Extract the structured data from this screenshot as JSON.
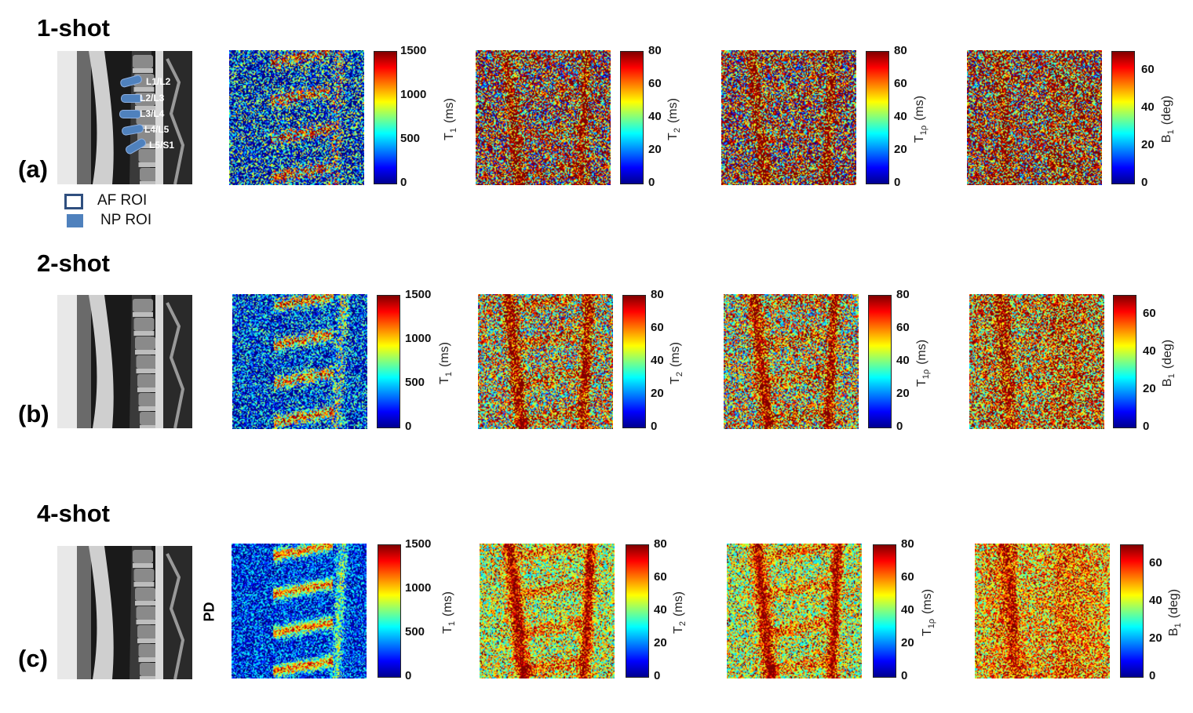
{
  "rows": [
    {
      "title": "1-shot",
      "letter": "(a)"
    },
    {
      "title": "2-shot",
      "letter": "(b)"
    },
    {
      "title": "4-shot",
      "letter": "(c)"
    }
  ],
  "maps": [
    {
      "id": "t1",
      "label": "T",
      "sub": "1",
      "unit": "(ms)",
      "ticks": [
        "1500",
        "1000",
        "500",
        "0"
      ]
    },
    {
      "id": "t2",
      "label": "T",
      "sub": "2",
      "unit": "(ms)",
      "ticks": [
        "80",
        "60",
        "40",
        "20",
        "0"
      ]
    },
    {
      "id": "t1r",
      "label": "T",
      "sub": "1ρ",
      "unit": "(ms)",
      "ticks": [
        "80",
        "60",
        "40",
        "20",
        "0"
      ]
    },
    {
      "id": "b1",
      "label": "B",
      "sub": "1",
      "unit": "(deg)",
      "ticks": [
        "60",
        "40",
        "20",
        "0"
      ]
    }
  ],
  "roi_labels": [
    "L1/L2",
    "L2/L3",
    "L3/L4",
    "L4/L5",
    "L5/S1"
  ],
  "legend": {
    "af": "AF ROI",
    "np": "NP ROI"
  },
  "pd_label": "PD",
  "colors": {
    "jet_low": "#00008f",
    "jet_high": "#800000",
    "roi": "#4f81bd",
    "roi_border": "#2f4f7f"
  }
}
